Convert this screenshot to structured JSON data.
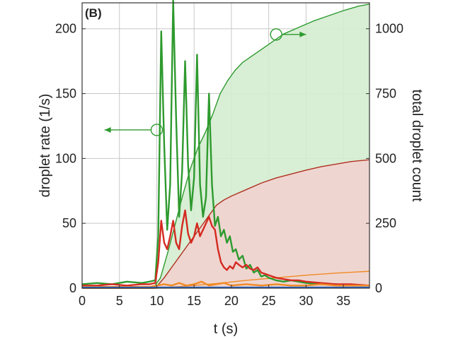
{
  "chart_data": {
    "type": "line",
    "panel_label": "(B)",
    "xlabel": "t (s)",
    "ylabel_left": "droplet rate (1/s)",
    "ylabel_right": "total droplet count",
    "xlim": [
      0,
      38.5
    ],
    "ylim_left": [
      0,
      220
    ],
    "ylim_right": [
      0,
      1100
    ],
    "x_ticks": [
      0,
      5,
      10,
      15,
      20,
      25,
      30,
      35
    ],
    "y_ticks_left": [
      0,
      50,
      100,
      150,
      200
    ],
    "y_ticks_right": [
      0,
      250,
      500,
      750,
      1000
    ],
    "grid": true,
    "annotations": [
      {
        "marker": "circle",
        "at": [
          10.0,
          122
        ],
        "axis": "left",
        "arrow_to": [
          3.0,
          122
        ]
      },
      {
        "marker": "circle",
        "at": [
          26.0,
          978
        ],
        "axis": "right",
        "arrow_to": [
          30.0,
          978
        ]
      }
    ],
    "colors": {
      "green": "#2e9a2e",
      "red": "#d42a20",
      "dark_red": "#b03020",
      "orange": "#f08a24",
      "blue": "#2a66c8",
      "green_fill": "#d4ecd0",
      "red_fill": "#f2d2cf",
      "grid": "#c8c8c8"
    },
    "series": [
      {
        "color": "green",
        "axis": "left",
        "role": "rate",
        "x": [
          0,
          2,
          4,
          6,
          8,
          9,
          9.8,
          10.2,
          10.6,
          11.0,
          11.4,
          11.8,
          12.2,
          12.6,
          13.0,
          13.4,
          13.8,
          14.2,
          14.6,
          15.0,
          15.4,
          15.8,
          16.2,
          16.6,
          17.0,
          17.4,
          17.8,
          18.2,
          18.6,
          19.0,
          19.4,
          19.8,
          20.2,
          20.6,
          21.0,
          21.5,
          22.0,
          22.5,
          23.0,
          23.5,
          24.0,
          24.5,
          25.0,
          26.0,
          27.0,
          28.0,
          29.0,
          30.0,
          32.0,
          34.0,
          36.0,
          38.5
        ],
        "y": [
          3,
          4,
          3,
          5,
          4,
          5,
          6,
          40,
          198,
          110,
          45,
          80,
          222,
          130,
          55,
          90,
          175,
          95,
          60,
          85,
          180,
          80,
          55,
          70,
          150,
          80,
          48,
          55,
          40,
          45,
          35,
          40,
          28,
          30,
          22,
          25,
          15,
          18,
          12,
          14,
          9,
          10,
          8,
          6,
          5,
          6,
          5,
          4,
          3,
          3,
          2,
          2
        ]
      },
      {
        "color": "red",
        "axis": "left",
        "role": "rate",
        "x": [
          0,
          2,
          4,
          6,
          8,
          9,
          9.8,
          10.2,
          10.6,
          11.0,
          11.4,
          11.8,
          12.2,
          12.6,
          13.0,
          13.4,
          13.8,
          14.2,
          14.6,
          15.0,
          15.4,
          15.8,
          16.2,
          16.6,
          17.0,
          17.4,
          17.8,
          18.2,
          18.6,
          19.0,
          19.4,
          19.8,
          20.2,
          20.6,
          21.0,
          21.5,
          22.0,
          22.5,
          23.0,
          23.5,
          24.0,
          24.5,
          25.0,
          26.0,
          27.0,
          28.0,
          29.0,
          30.0,
          32.0,
          34.0,
          36.0,
          38.5
        ],
        "y": [
          2,
          2,
          3,
          2,
          3,
          3,
          4,
          20,
          52,
          35,
          30,
          40,
          52,
          35,
          30,
          48,
          60,
          42,
          35,
          40,
          50,
          40,
          45,
          50,
          55,
          48,
          45,
          30,
          20,
          16,
          14,
          17,
          15,
          20,
          18,
          16,
          18,
          15,
          14,
          16,
          12,
          11,
          10,
          8,
          7,
          6,
          6,
          5,
          4,
          3,
          3,
          2
        ]
      },
      {
        "color": "orange",
        "axis": "left",
        "role": "rate",
        "x": [
          0,
          5,
          9,
          10,
          11,
          12,
          13,
          14,
          15,
          16,
          17,
          18,
          19,
          20,
          22,
          24,
          26,
          28,
          30,
          32,
          34,
          36,
          38.5
        ],
        "y": [
          1,
          1,
          1,
          2,
          3,
          2,
          4,
          2,
          3,
          5,
          2,
          3,
          4,
          2,
          3,
          2,
          3,
          2,
          2,
          3,
          2,
          2,
          2
        ]
      },
      {
        "color": "blue",
        "axis": "left",
        "role": "rate",
        "x": [
          0,
          5,
          10,
          15,
          20,
          25,
          30,
          35,
          38.5
        ],
        "y": [
          0.5,
          0.5,
          0.5,
          0.5,
          0.5,
          0.5,
          0.5,
          0.5,
          0.5
        ]
      },
      {
        "color": "green",
        "axis": "right",
        "role": "total",
        "fill": "green_fill",
        "x": [
          0,
          9.5,
          10.5,
          11.5,
          12.5,
          13.5,
          14.5,
          15.5,
          16.5,
          17.5,
          18.5,
          19.5,
          20.5,
          21.5,
          23.0,
          25.0,
          27.0,
          29.0,
          31.0,
          33.0,
          35.0,
          37.0,
          38.5
        ],
        "y": [
          0,
          0,
          40,
          140,
          250,
          360,
          460,
          540,
          600,
          670,
          750,
          800,
          840,
          870,
          900,
          940,
          980,
          1005,
          1030,
          1050,
          1070,
          1087,
          1095
        ]
      },
      {
        "color": "dark_red",
        "axis": "right",
        "role": "total",
        "fill": "red_fill",
        "x": [
          0,
          9.8,
          11,
          12,
          13,
          14,
          15,
          16,
          17,
          18,
          19,
          20,
          22,
          24,
          26,
          28,
          30,
          32,
          34,
          36,
          38.5
        ],
        "y": [
          0,
          0,
          40,
          80,
          120,
          160,
          200,
          240,
          280,
          320,
          340,
          355,
          380,
          405,
          425,
          440,
          455,
          468,
          478,
          488,
          495
        ]
      },
      {
        "color": "orange",
        "axis": "right",
        "role": "total",
        "x": [
          0,
          10,
          14,
          18,
          22,
          26,
          30,
          34,
          38.5
        ],
        "y": [
          0,
          0,
          8,
          18,
          30,
          40,
          50,
          58,
          65
        ]
      }
    ]
  }
}
